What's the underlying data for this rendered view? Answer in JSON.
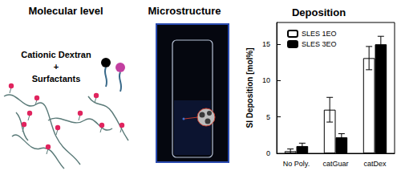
{
  "panels": {
    "molecular": {
      "title": "Molecular level",
      "label_lines": [
        "Cationic Dextran",
        "+",
        "Surfactants"
      ]
    },
    "microstructure": {
      "title": "Microstructure"
    }
  },
  "chart_data": {
    "type": "bar",
    "title": "Deposition",
    "y_label": "SI Deposition [mol%]",
    "categories": [
      "No Poly.",
      "catGuar",
      "catDex"
    ],
    "series": [
      {
        "name": "SLES 1EO",
        "color": "#ffffff",
        "values": [
          0.3,
          6.0,
          13.1
        ],
        "errors": [
          0.3,
          1.7,
          1.6
        ]
      },
      {
        "name": "SLES 3EO",
        "color": "#000000",
        "values": [
          1.0,
          2.2,
          15.0
        ],
        "errors": [
          0.4,
          0.5,
          1.1
        ]
      }
    ],
    "ylim": [
      0,
      18
    ],
    "yticks": [
      0,
      5,
      10,
      15
    ],
    "grid": false,
    "legend": "upper left"
  }
}
